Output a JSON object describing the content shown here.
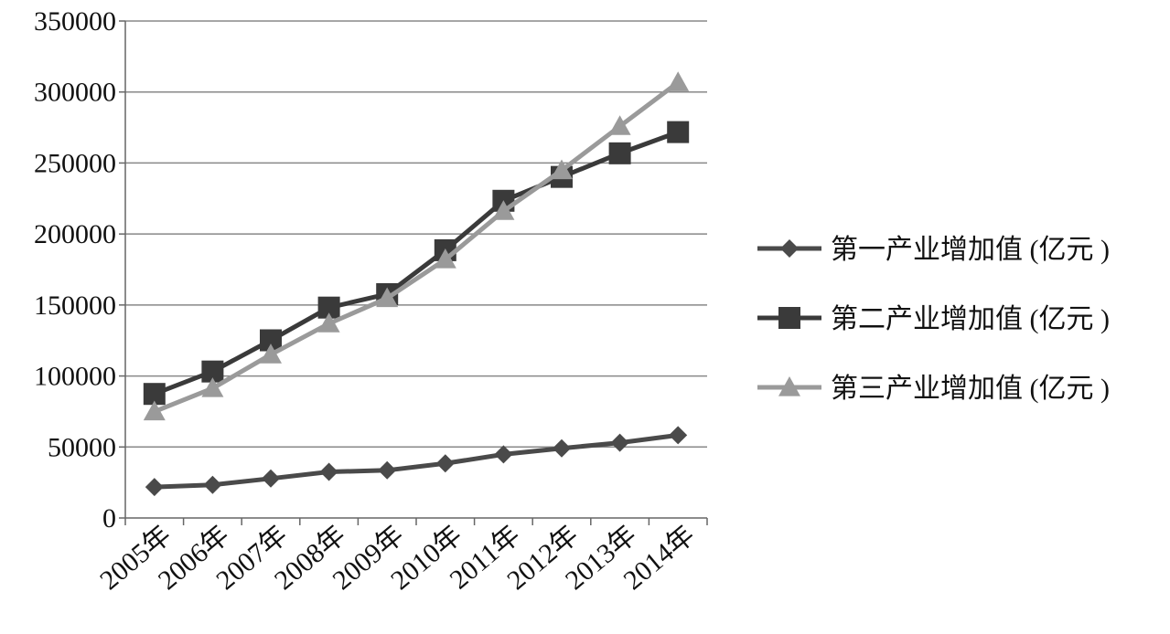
{
  "chart_data": {
    "type": "line",
    "categories": [
      "2005年",
      "2006年",
      "2007年",
      "2008年",
      "2009年",
      "2010年",
      "2011年",
      "2012年",
      "2013年",
      "2014年"
    ],
    "series": [
      {
        "name": "第一产业增加值 (亿元 )",
        "color": "#4a4a4a",
        "marker": "diamond",
        "values": [
          21806,
          23317,
          27788,
          32464,
          33584,
          38430,
          44781,
          49085,
          53028,
          58332
        ]
      },
      {
        "name": "第二产业增加值 (亿元 )",
        "color": "#3a3a3a",
        "marker": "square",
        "values": [
          87365,
          103162,
          125133,
          148179,
          157638,
          188573,
          223390,
          240200,
          256810,
          271765
        ]
      },
      {
        "name": "第三产业增加值 (亿元 )",
        "color": "#9a9a9a",
        "marker": "triangle",
        "values": [
          74919,
          91310,
          115090,
          136906,
          154748,
          182038,
          216099,
          244822,
          275887,
          306739
        ]
      }
    ],
    "ylim": [
      0,
      350000
    ],
    "yticks": [
      0,
      50000,
      100000,
      150000,
      200000,
      250000,
      300000,
      350000
    ],
    "grid": true,
    "legend": "right"
  }
}
